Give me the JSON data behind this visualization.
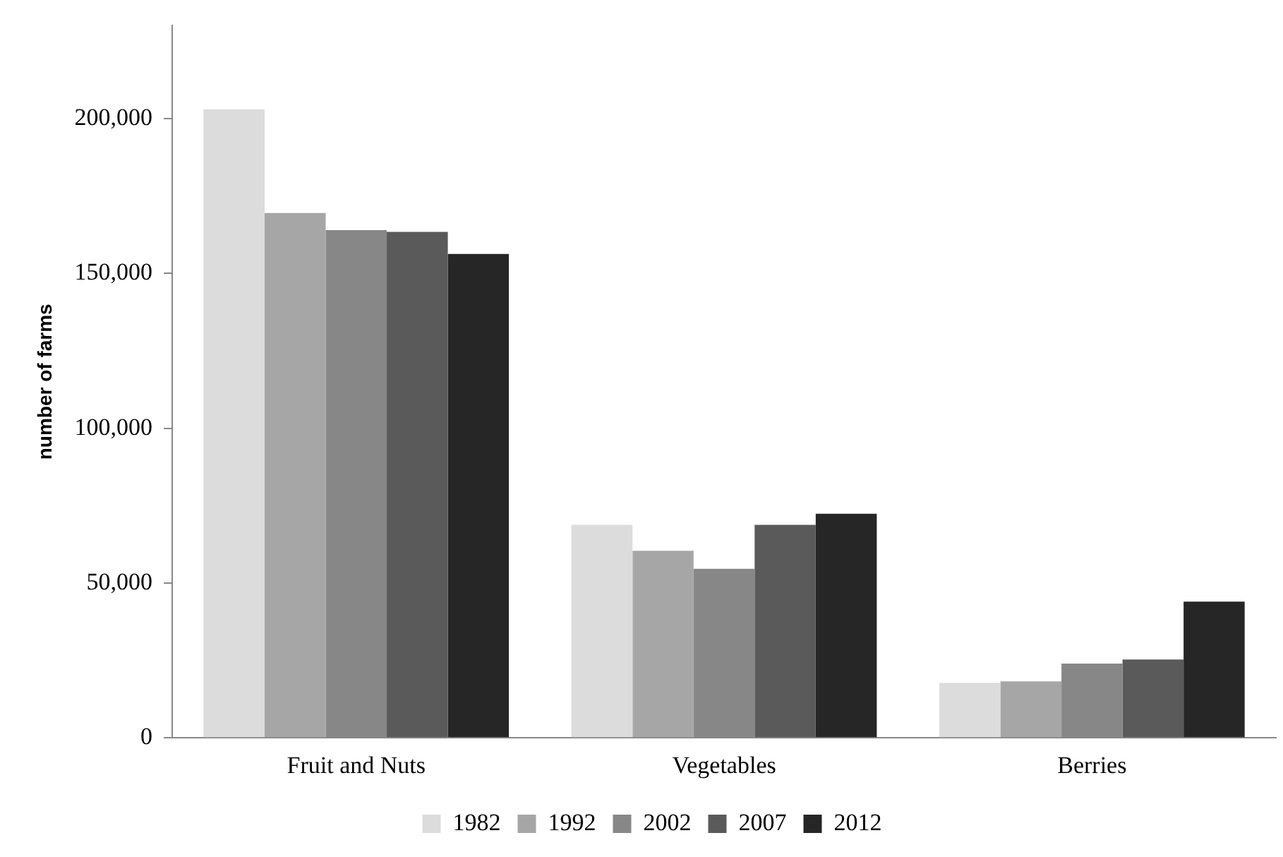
{
  "chart_data": {
    "type": "bar",
    "ylabel": "number of farms",
    "categories": [
      "Fruit and Nuts",
      "Vegetables",
      "Berries"
    ],
    "series": [
      {
        "name": "1982",
        "color": "#dcdcdc",
        "values": [
          203000,
          68800,
          17800
        ]
      },
      {
        "name": "1992",
        "color": "#a6a6a6",
        "values": [
          169500,
          60400,
          18200
        ]
      },
      {
        "name": "2002",
        "color": "#878787",
        "values": [
          164000,
          54600,
          24000
        ]
      },
      {
        "name": "2007",
        "color": "#5a5a5a",
        "values": [
          163400,
          68800,
          25300
        ]
      },
      {
        "name": "2012",
        "color": "#262626",
        "values": [
          156300,
          72400,
          44000
        ]
      }
    ],
    "ylim": [
      0,
      230000
    ],
    "yticks": [
      0,
      {
        "value": 50000,
        "label": "50,000"
      },
      {
        "value": 100000,
        "label": "100,000"
      },
      {
        "value": 150000,
        "label": "150,000"
      },
      {
        "value": 200000,
        "label": "200,000"
      }
    ],
    "grid": false,
    "legend": "bottom"
  }
}
